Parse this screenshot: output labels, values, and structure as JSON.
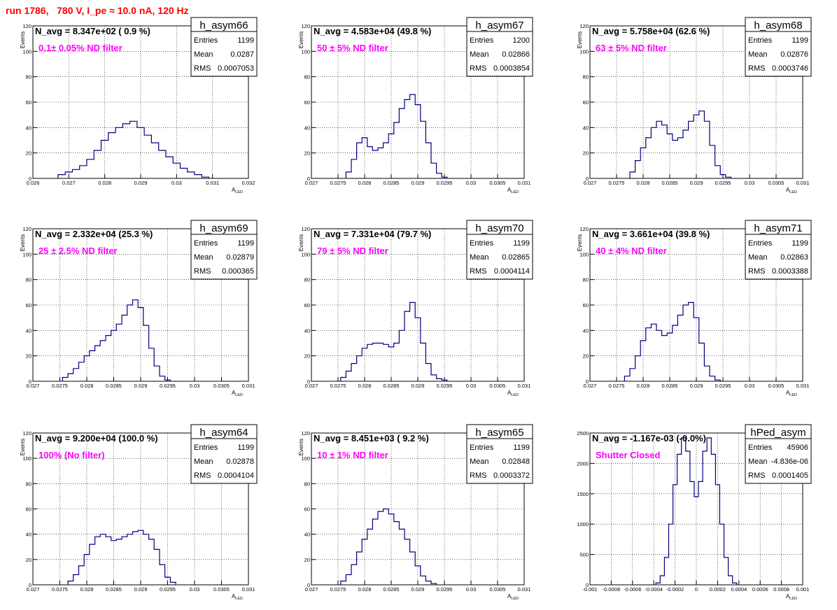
{
  "page": {
    "title": "run 1786,   780 V, I_pe ≈ 10.0 nA, 120 Hz"
  },
  "chart_data": [
    {
      "type": "histogram",
      "name": "h_asym66",
      "nlabel": "N_avg = 8.347e+02 ( 0.9 %)",
      "annotation": "0.1± 0.05% ND filter",
      "stats": {
        "Entries": "1199",
        "Mean": "0.0287",
        "RMS": "0.0007053"
      },
      "xlim": [
        0.026,
        0.032
      ],
      "ylim": [
        0,
        120
      ],
      "xticks": [
        "0.026",
        "0.027",
        "0.028",
        "0.029",
        "0.03",
        "0.031",
        "0.032"
      ],
      "yticks": [
        "0",
        "20",
        "40",
        "60",
        "80",
        "100",
        "120"
      ],
      "xlabel": "A",
      "xlabel_sub": "LED",
      "ylabel": "Events",
      "x": [
        0.0268,
        0.027,
        0.0272,
        0.0274,
        0.0276,
        0.0278,
        0.028,
        0.0282,
        0.0284,
        0.0286,
        0.0288,
        0.029,
        0.0292,
        0.0294,
        0.0296,
        0.0298,
        0.03,
        0.0302,
        0.0304,
        0.0306,
        0.0308
      ],
      "y": [
        3,
        5,
        7,
        10,
        15,
        22,
        30,
        36,
        40,
        43,
        45,
        40,
        34,
        28,
        22,
        17,
        12,
        8,
        5,
        3,
        1
      ]
    },
    {
      "type": "histogram",
      "name": "h_asym67",
      "nlabel": "N_avg = 4.583e+04 (49.8 %)",
      "annotation": "50 ± 5% ND filter",
      "stats": {
        "Entries": "1200",
        "Mean": "0.02866",
        "RMS": "0.0003854"
      },
      "xlim": [
        0.027,
        0.031
      ],
      "ylim": [
        0,
        120
      ],
      "xticks": [
        "0.027",
        "0.0275",
        "0.028",
        "0.0285",
        "0.029",
        "0.0295",
        "0.03",
        "0.0305",
        "0.031"
      ],
      "yticks": [
        "0",
        "20",
        "40",
        "60",
        "80",
        "100",
        "120"
      ],
      "xlabel": "A",
      "xlabel_sub": "LED",
      "ylabel": "Events",
      "x": [
        0.0277,
        0.0278,
        0.0279,
        0.028,
        0.0281,
        0.0282,
        0.0283,
        0.0284,
        0.0285,
        0.0286,
        0.0287,
        0.0288,
        0.0289,
        0.029,
        0.0291,
        0.0292,
        0.0293,
        0.0294,
        0.0295
      ],
      "y": [
        5,
        15,
        28,
        32,
        25,
        22,
        24,
        28,
        35,
        44,
        55,
        62,
        66,
        58,
        45,
        28,
        12,
        4,
        1
      ]
    },
    {
      "type": "histogram",
      "name": "h_asym68",
      "nlabel": "N_avg = 5.758e+04 (62.6 %)",
      "annotation": "63 ± 5% ND filter",
      "stats": {
        "Entries": "1199",
        "Mean": "0.02876",
        "RMS": "0.0003746"
      },
      "xlim": [
        0.027,
        0.031
      ],
      "ylim": [
        0,
        120
      ],
      "xticks": [
        "0.027",
        "0.0275",
        "0.028",
        "0.0285",
        "0.029",
        "0.0295",
        "0.03",
        "0.0305",
        "0.031"
      ],
      "yticks": [
        "0",
        "20",
        "40",
        "60",
        "80",
        "100",
        "120"
      ],
      "xlabel": "A",
      "xlabel_sub": "LED",
      "ylabel": "Events",
      "x": [
        0.0278,
        0.0279,
        0.028,
        0.0281,
        0.0282,
        0.0283,
        0.0284,
        0.0285,
        0.0286,
        0.0287,
        0.0288,
        0.0289,
        0.029,
        0.0291,
        0.0292,
        0.0293,
        0.0294,
        0.0295,
        0.0296
      ],
      "y": [
        5,
        14,
        24,
        32,
        40,
        45,
        42,
        35,
        30,
        32,
        38,
        45,
        50,
        53,
        45,
        26,
        10,
        3,
        1
      ]
    },
    {
      "type": "histogram",
      "name": "h_asym69",
      "nlabel": "N_avg = 2.332e+04 (25.3 %)",
      "annotation": "25 ± 2.5% ND filter",
      "stats": {
        "Entries": "1199",
        "Mean": "0.02879",
        "RMS": "0.000365"
      },
      "xlim": [
        0.027,
        0.031
      ],
      "ylim": [
        0,
        120
      ],
      "xticks": [
        "0.027",
        "0.0275",
        "0.028",
        "0.0285",
        "0.029",
        "0.0295",
        "0.03",
        "0.0305",
        "0.031"
      ],
      "yticks": [
        "0",
        "20",
        "40",
        "60",
        "80",
        "100",
        "120"
      ],
      "xlabel": "A",
      "xlabel_sub": "LED",
      "ylabel": "Events",
      "x": [
        0.0276,
        0.0277,
        0.0278,
        0.0279,
        0.028,
        0.0281,
        0.0282,
        0.0283,
        0.0284,
        0.0285,
        0.0286,
        0.0287,
        0.0288,
        0.0289,
        0.029,
        0.0291,
        0.0292,
        0.0293,
        0.0294,
        0.0295
      ],
      "y": [
        3,
        6,
        10,
        15,
        20,
        24,
        28,
        32,
        36,
        40,
        45,
        52,
        60,
        64,
        58,
        44,
        26,
        12,
        4,
        1
      ]
    },
    {
      "type": "histogram",
      "name": "h_asym70",
      "nlabel": "N_avg = 7.331e+04 (79.7 %)",
      "annotation": "79 ± 5% ND filter",
      "stats": {
        "Entries": "1199",
        "Mean": "0.02865",
        "RMS": "0.0004114"
      },
      "xlim": [
        0.027,
        0.031
      ],
      "ylim": [
        0,
        120
      ],
      "xticks": [
        "0.027",
        "0.0275",
        "0.028",
        "0.0285",
        "0.029",
        "0.0295",
        "0.03",
        "0.0305",
        "0.031"
      ],
      "yticks": [
        "0",
        "20",
        "40",
        "60",
        "80",
        "100",
        "120"
      ],
      "xlabel": "A",
      "xlabel_sub": "LED",
      "ylabel": "Events",
      "x": [
        0.0276,
        0.0277,
        0.0278,
        0.0279,
        0.028,
        0.0281,
        0.0282,
        0.0283,
        0.0284,
        0.0285,
        0.0286,
        0.0287,
        0.0288,
        0.0289,
        0.029,
        0.0291,
        0.0292,
        0.0293,
        0.0294,
        0.0295
      ],
      "y": [
        3,
        8,
        14,
        20,
        26,
        29,
        30,
        30,
        29,
        27,
        30,
        40,
        55,
        62,
        50,
        30,
        14,
        5,
        2,
        1
      ]
    },
    {
      "type": "histogram",
      "name": "h_asym71",
      "nlabel": "N_avg = 3.661e+04 (39.8 %)",
      "annotation": "40 ± 4% ND filter",
      "stats": {
        "Entries": "1199",
        "Mean": "0.02863",
        "RMS": "0.0003388"
      },
      "xlim": [
        0.027,
        0.031
      ],
      "ylim": [
        0,
        120
      ],
      "xticks": [
        "0.027",
        "0.0275",
        "0.028",
        "0.0285",
        "0.029",
        "0.0295",
        "0.03",
        "0.0305",
        "0.031"
      ],
      "yticks": [
        "0",
        "20",
        "40",
        "60",
        "80",
        "100",
        "120"
      ],
      "xlabel": "A",
      "xlabel_sub": "LED",
      "ylabel": "Events",
      "x": [
        0.0277,
        0.0278,
        0.0279,
        0.028,
        0.0281,
        0.0282,
        0.0283,
        0.0284,
        0.0285,
        0.0286,
        0.0287,
        0.0288,
        0.0289,
        0.029,
        0.0291,
        0.0292,
        0.0293,
        0.0294
      ],
      "y": [
        4,
        10,
        20,
        32,
        42,
        45,
        40,
        36,
        38,
        44,
        52,
        60,
        62,
        50,
        30,
        12,
        4,
        1
      ]
    },
    {
      "type": "histogram",
      "name": "h_asym64",
      "nlabel": "N_avg = 9.200e+04 (100.0 %)",
      "annotation": "100% (No filter)",
      "stats": {
        "Entries": "1199",
        "Mean": "0.02878",
        "RMS": "0.0004104"
      },
      "xlim": [
        0.027,
        0.031
      ],
      "ylim": [
        0,
        120
      ],
      "xticks": [
        "0.027",
        "0.0275",
        "0.028",
        "0.0285",
        "0.029",
        "0.0295",
        "0.03",
        "0.0305",
        "0.031"
      ],
      "yticks": [
        "0",
        "20",
        "40",
        "60",
        "80",
        "100",
        "120"
      ],
      "xlabel": "A",
      "xlabel_sub": "LED",
      "ylabel": "Events",
      "x": [
        0.0277,
        0.0278,
        0.0279,
        0.028,
        0.0281,
        0.0282,
        0.0283,
        0.0284,
        0.0285,
        0.0286,
        0.0287,
        0.0288,
        0.0289,
        0.029,
        0.0291,
        0.0292,
        0.0293,
        0.0294,
        0.0295,
        0.0296
      ],
      "y": [
        3,
        8,
        15,
        24,
        32,
        38,
        40,
        38,
        35,
        36,
        38,
        40,
        42,
        43,
        40,
        36,
        28,
        16,
        6,
        2
      ]
    },
    {
      "type": "histogram",
      "name": "h_asym65",
      "nlabel": "N_avg = 8.451e+03 ( 9.2 %)",
      "annotation": "10 ± 1% ND filter",
      "stats": {
        "Entries": "1199",
        "Mean": "0.02848",
        "RMS": "0.0003372"
      },
      "xlim": [
        0.027,
        0.031
      ],
      "ylim": [
        0,
        120
      ],
      "xticks": [
        "0.027",
        "0.0275",
        "0.028",
        "0.0285",
        "0.029",
        "0.0295",
        "0.03",
        "0.0305",
        "0.031"
      ],
      "yticks": [
        "0",
        "20",
        "40",
        "60",
        "80",
        "100",
        "120"
      ],
      "xlabel": "A",
      "xlabel_sub": "LED",
      "ylabel": "Events",
      "x": [
        0.0276,
        0.0277,
        0.0278,
        0.0279,
        0.028,
        0.0281,
        0.0282,
        0.0283,
        0.0284,
        0.0285,
        0.0286,
        0.0287,
        0.0288,
        0.0289,
        0.029,
        0.0291,
        0.0292,
        0.0293
      ],
      "y": [
        3,
        8,
        16,
        26,
        36,
        44,
        52,
        58,
        60,
        56,
        50,
        44,
        36,
        26,
        15,
        7,
        3,
        1
      ]
    },
    {
      "type": "histogram",
      "name": "hPed_asym",
      "nlabel": "N_avg = -1.167e-03 (-0.0%)",
      "annotation": "Shutter Closed",
      "stats": {
        "Entries": "45906",
        "Mean": "-4.836e-06",
        "RMS": "0.0001405"
      },
      "xlim": [
        -0.001,
        0.001
      ],
      "ylim": [
        0,
        2500
      ],
      "xticks": [
        "-0.001",
        "-0.0008",
        "-0.0006",
        "-0.0004",
        "-0.0002",
        "0",
        "0.0002",
        "0.0004",
        "0.0006",
        "0.0008",
        "0.001"
      ],
      "yticks": [
        "0",
        "500",
        "1000",
        "1500",
        "2000",
        "2500"
      ],
      "xlabel": "A",
      "xlabel_sub": "LED",
      "ylabel": "",
      "x": [
        -0.00036,
        -0.00032,
        -0.00028,
        -0.00024,
        -0.0002,
        -0.00016,
        -0.00012,
        -8e-05,
        -4e-05,
        0.0,
        4e-05,
        8e-05,
        0.00012,
        0.00016,
        0.0002,
        0.00024,
        0.00028,
        0.00032,
        0.00036
      ],
      "y": [
        30,
        150,
        450,
        1000,
        1650,
        2150,
        2420,
        2200,
        1700,
        1450,
        1700,
        2200,
        2420,
        2150,
        1650,
        1000,
        450,
        150,
        30
      ]
    }
  ]
}
